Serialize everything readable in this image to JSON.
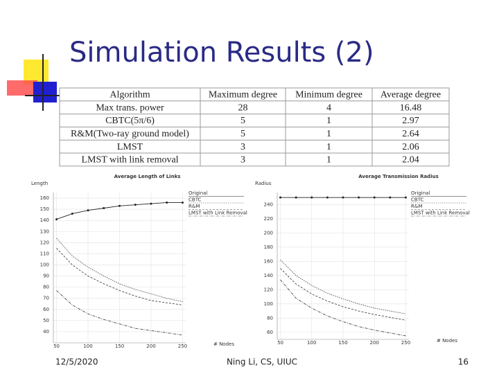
{
  "title": "Simulation Results (2)",
  "table": {
    "header": [
      "Algorithm",
      "Maximum degree",
      "Minimum degree",
      "Average degree"
    ],
    "rows": [
      [
        "Max trans. power",
        28,
        4,
        16.48
      ],
      [
        "CBTC(5π/6)",
        5,
        1,
        2.97
      ],
      [
        "R&M(Two-ray ground model)",
        5,
        1,
        2.64
      ],
      [
        "LMST",
        3,
        1,
        2.06
      ],
      [
        "LMST with link removal",
        3,
        1,
        2.04
      ]
    ]
  },
  "chart_data": [
    {
      "type": "line",
      "title": "Average Length of Links",
      "y_label": "Length",
      "x_label": "# Nodes",
      "x": [
        50,
        75,
        100,
        125,
        150,
        175,
        200,
        225,
        250
      ],
      "series": [
        {
          "name": "Original",
          "color": "#222222",
          "values": [
            141,
            146,
            149,
            151,
            153,
            154,
            155,
            156,
            156
          ]
        },
        {
          "name": "CBTC",
          "color": "#444444",
          "values": [
            124,
            108,
            98,
            90,
            83,
            78,
            74,
            70,
            67
          ]
        },
        {
          "name": "R&M",
          "color": "#444444",
          "values": [
            115,
            100,
            90,
            83,
            77,
            72,
            68,
            66,
            64
          ]
        },
        {
          "name": "LMST with Link Removal",
          "color": "#444444",
          "values": [
            77,
            64,
            56,
            51,
            47,
            43,
            41,
            39,
            37
          ]
        }
      ],
      "xlim": [
        45,
        255
      ],
      "ylim": [
        30,
        165
      ],
      "xticks": [
        50,
        100,
        150,
        200,
        250
      ],
      "yticks": [
        40,
        50,
        60,
        70,
        80,
        90,
        100,
        110,
        120,
        130,
        140,
        150,
        160
      ],
      "grid": true
    },
    {
      "type": "line",
      "title": "Average Transmission Radius",
      "y_label": "Radius",
      "x_label": "# Nodes",
      "x": [
        50,
        75,
        100,
        125,
        150,
        175,
        200,
        225,
        250
      ],
      "series": [
        {
          "name": "Original",
          "color": "#222222",
          "values": [
            250,
            250,
            250,
            250,
            250,
            250,
            250,
            250,
            250
          ]
        },
        {
          "name": "CBTC",
          "color": "#444444",
          "values": [
            162,
            140,
            126,
            115,
            107,
            100,
            94,
            90,
            86
          ]
        },
        {
          "name": "R&M",
          "color": "#444444",
          "values": [
            150,
            128,
            114,
            104,
            96,
            90,
            85,
            81,
            77
          ]
        },
        {
          "name": "LMST with Link Removal",
          "color": "#444444",
          "values": [
            134,
            108,
            94,
            83,
            75,
            68,
            63,
            59,
            55
          ]
        }
      ],
      "xlim": [
        45,
        255
      ],
      "ylim": [
        50,
        257
      ],
      "xticks": [
        50,
        100,
        150,
        200,
        250
      ],
      "yticks": [
        60,
        80,
        100,
        120,
        140,
        160,
        180,
        200,
        220,
        240
      ],
      "grid": true
    }
  ],
  "footer": {
    "date": "12/5/2020",
    "author": "Ning Li, CS, UIUC",
    "page": 16
  }
}
